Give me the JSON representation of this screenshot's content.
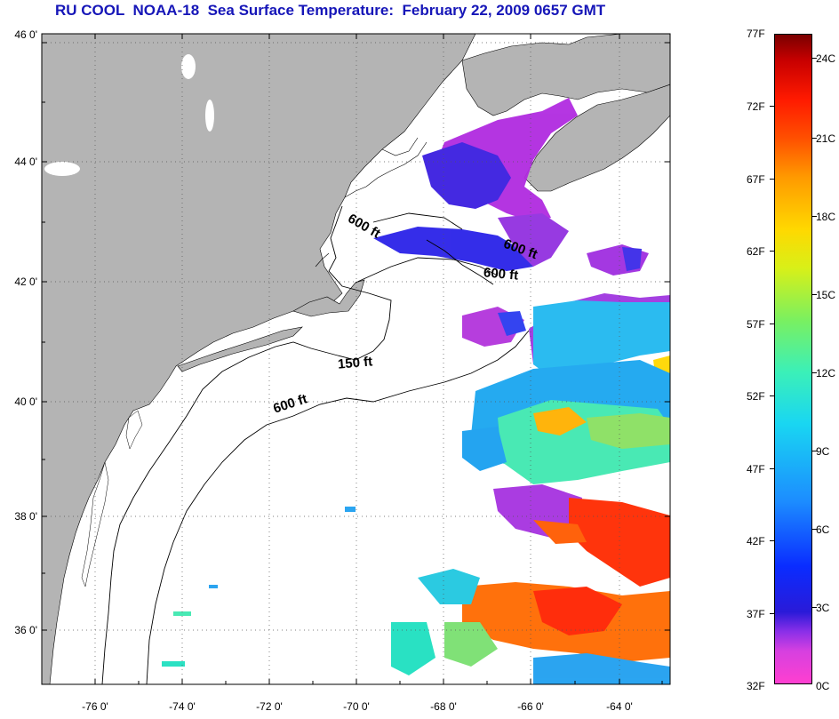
{
  "title": "RU COOL  NOAA-18  Sea Surface Temperature:  February 22, 2009 0657 GMT",
  "map": {
    "lat_labels": [
      "46 0'",
      "44 0'",
      "42 0'",
      "40 0'",
      "38 0'",
      "36 0'"
    ],
    "lon_labels": [
      "-76 0'",
      "-74 0'",
      "-72 0'",
      "-70 0'",
      "-68 0'",
      "-66 0'",
      "-64 0'"
    ],
    "lat_range": [
      35,
      46
    ],
    "lon_range": [
      -77,
      -63
    ],
    "isobaths": [
      {
        "label": "600 ft"
      },
      {
        "label": "600 ft"
      },
      {
        "label": "600 ft"
      },
      {
        "label": "150 ft"
      },
      {
        "label": "600 ft"
      }
    ],
    "colors": {
      "land": "#b4b4b4",
      "ocean_no_data": "#ffffff",
      "title": "#1616b8"
    }
  },
  "colorbar": {
    "fahrenheit_labels": [
      "77F",
      "72F",
      "67F",
      "62F",
      "57F",
      "52F",
      "47F",
      "42F",
      "37F",
      "32F"
    ],
    "celsius_labels": [
      "24C",
      "21C",
      "18C",
      "15C",
      "12C",
      "9C",
      "6C",
      "3C",
      "0C"
    ],
    "range_f": [
      32,
      77
    ],
    "range_c": [
      0,
      25
    ]
  }
}
